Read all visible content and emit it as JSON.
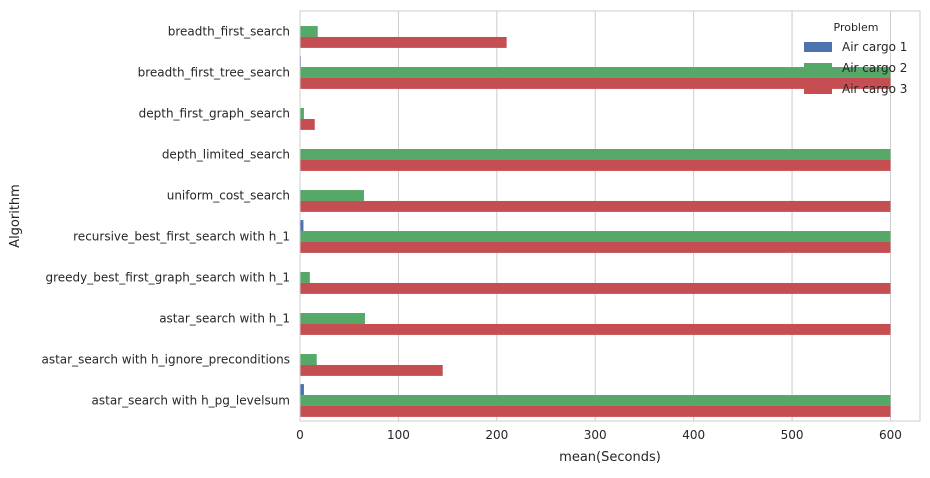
{
  "chart_data": {
    "type": "bar",
    "orientation": "horizontal",
    "categories": [
      "breadth_first_search",
      "breadth_first_tree_search",
      "depth_first_graph_search",
      "depth_limited_search",
      "uniform_cost_search",
      "recursive_best_first_search with h_1",
      "greedy_best_first_graph_search with h_1",
      "astar_search with h_1",
      "astar_search with h_ignore_preconditions",
      "astar_search with h_pg_levelsum"
    ],
    "series": [
      {
        "name": "Air cargo 1",
        "color": "#4c72b0",
        "values": [
          0.03,
          0.9,
          0.01,
          0.1,
          0.04,
          3.5,
          0.01,
          0.05,
          0.05,
          4.0
        ]
      },
      {
        "name": "Air cargo 2",
        "color": "#55a868",
        "values": [
          18,
          600,
          4,
          600,
          65,
          600,
          10,
          66,
          17,
          600
        ]
      },
      {
        "name": "Air cargo 3",
        "color": "#c44e52",
        "values": [
          210,
          600,
          15,
          600,
          600,
          600,
          600,
          600,
          145,
          600
        ]
      }
    ],
    "xlabel": "mean(Seconds)",
    "ylabel": "Algorithm",
    "xlim": [
      0,
      630
    ],
    "xticks": [
      0,
      100,
      200,
      300,
      400,
      500,
      600
    ],
    "grid": "vertical",
    "legend": {
      "title": "Problem",
      "placement": "top-right"
    }
  }
}
